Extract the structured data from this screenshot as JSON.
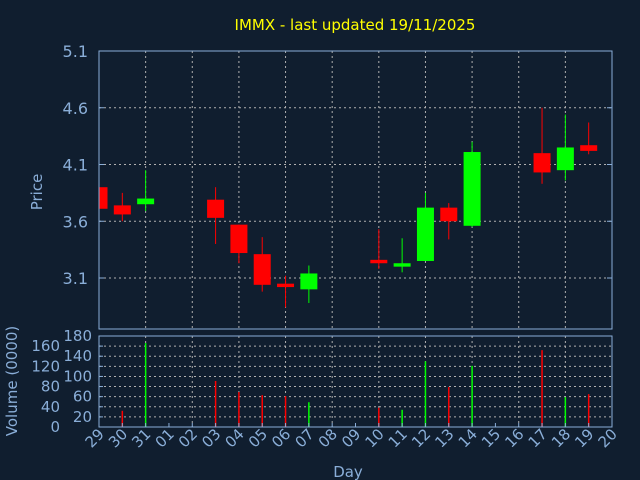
{
  "chart_data": {
    "type": "candlestick",
    "title": "IMMX - last updated 19/11/2025",
    "xlabel": "Day",
    "ylabel": "Price",
    "volume_label": "Volume (0000)",
    "categories": [
      "29",
      "30",
      "31",
      "01",
      "02",
      "03",
      "04",
      "05",
      "06",
      "07",
      "08",
      "09",
      "10",
      "11",
      "12",
      "13",
      "14",
      "15",
      "16",
      "17",
      "18",
      "19",
      "20"
    ],
    "price_ticks": [
      "5.1",
      "4.6",
      "4.1",
      "3.6",
      "3.1"
    ],
    "price_ylim": [
      2.75,
      5.1
    ],
    "volume_ticks": [
      "180",
      "160",
      "140",
      "120",
      "100",
      "80",
      "60",
      "40",
      "20",
      "0"
    ],
    "volume_ylim": [
      0,
      180
    ],
    "grid": true,
    "colors": {
      "background": "#101e2f",
      "up": "#00ff00",
      "down": "#ff0000",
      "axis": "#8aaed8",
      "title": "#ffff00",
      "grid": "#b0b0b0"
    },
    "candles": [
      {
        "day": "29",
        "open": 3.9,
        "high": 3.9,
        "low": 3.71,
        "close": 3.71,
        "volume": null
      },
      {
        "day": "30",
        "open": 3.74,
        "high": 3.85,
        "low": 3.6,
        "close": 3.66,
        "volume": 32
      },
      {
        "day": "31",
        "open": 3.75,
        "high": 4.05,
        "low": 3.69,
        "close": 3.8,
        "volume": 166
      },
      {
        "day": "03",
        "open": 3.79,
        "high": 3.9,
        "low": 3.4,
        "close": 3.63,
        "volume": 91
      },
      {
        "day": "04",
        "open": 3.57,
        "high": 3.57,
        "low": 3.23,
        "close": 3.32,
        "volume": 69
      },
      {
        "day": "05",
        "open": 3.31,
        "high": 3.46,
        "low": 2.98,
        "close": 3.04,
        "volume": 63
      },
      {
        "day": "06",
        "open": 3.05,
        "high": 3.12,
        "low": 2.84,
        "close": 3.02,
        "volume": 61
      },
      {
        "day": "07",
        "open": 3.0,
        "high": 3.21,
        "low": 2.88,
        "close": 3.14,
        "volume": 49
      },
      {
        "day": "10",
        "open": 3.26,
        "high": 3.53,
        "low": 3.18,
        "close": 3.23,
        "volume": 38
      },
      {
        "day": "11",
        "open": 3.2,
        "high": 3.45,
        "low": 3.15,
        "close": 3.23,
        "volume": 34
      },
      {
        "day": "12",
        "open": 3.25,
        "high": 3.85,
        "low": 3.25,
        "close": 3.72,
        "volume": 130
      },
      {
        "day": "13",
        "open": 3.72,
        "high": 3.76,
        "low": 3.44,
        "close": 3.6,
        "volume": 79
      },
      {
        "day": "14",
        "open": 3.56,
        "high": 4.3,
        "low": 3.55,
        "close": 4.21,
        "volume": 121
      },
      {
        "day": "17",
        "open": 4.2,
        "high": 4.6,
        "low": 3.93,
        "close": 4.03,
        "volume": 152
      },
      {
        "day": "18",
        "open": 4.05,
        "high": 4.54,
        "low": 3.96,
        "close": 4.25,
        "volume": 59
      },
      {
        "day": "19",
        "open": 4.27,
        "high": 4.47,
        "low": 4.19,
        "close": 4.22,
        "volume": 65
      }
    ]
  }
}
